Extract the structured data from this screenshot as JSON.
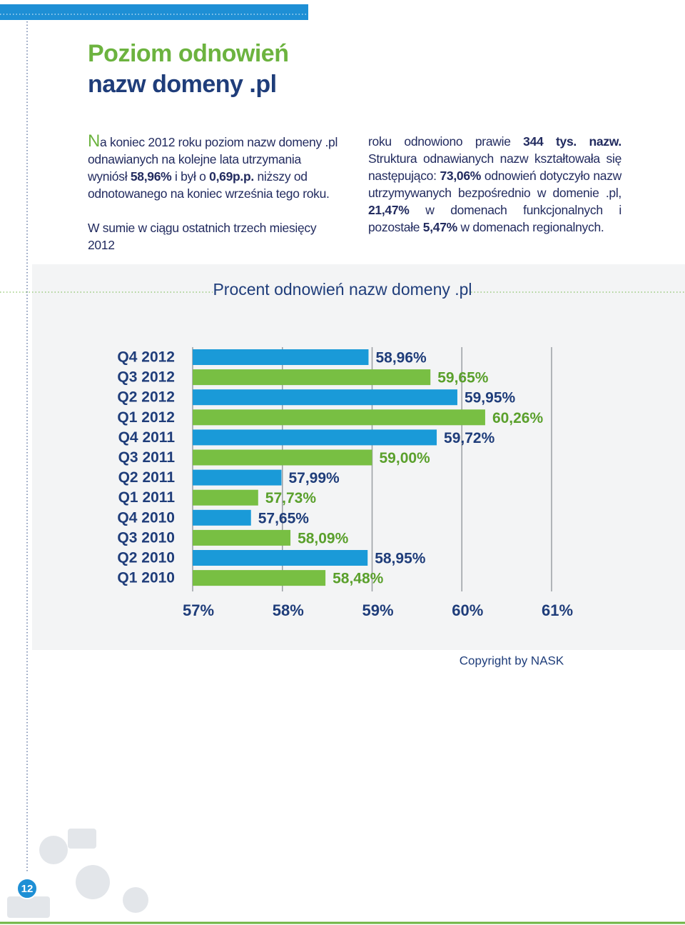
{
  "header": {
    "title_line1": "Poziom odnowień",
    "title_line2": "nazw domeny .pl"
  },
  "left_column": [
    {
      "segments": [
        {
          "text": "N",
          "initial": true
        },
        {
          "text": "a koniec 2012 roku poziom nazw domeny .pl odnawianych na kolejne lata utrzymania wyniósł "
        },
        {
          "text": "58,96%",
          "bold": true
        },
        {
          "text": " i był o "
        },
        {
          "text": "0,69p.p.",
          "bold": true
        },
        {
          "text": " niższy od odnotowanego na koniec września tego roku."
        }
      ]
    },
    {
      "segments": [
        {
          "text": "W sumie w ciągu ostatnich trzech miesięcy 2012"
        }
      ]
    }
  ],
  "right_column": [
    {
      "segments": [
        {
          "text": "roku odnowiono prawie "
        },
        {
          "text": "344 tys. nazw.",
          "bold": true
        },
        {
          "text": " Struktura odnawianych nazw kształtowała się następująco: "
        },
        {
          "text": "73,06%",
          "bold": true
        },
        {
          "text": " odnowień dotyczyło nazw utrzymywanych bezpośrednio w domenie .pl, "
        },
        {
          "text": "21,47%",
          "bold": true
        },
        {
          "text": " w domenach funkcjonalnych i pozostałe "
        },
        {
          "text": "5,47%",
          "bold": true
        },
        {
          "text": " w domenach regionalnych."
        }
      ]
    }
  ],
  "chart_data": {
    "type": "bar",
    "orientation": "horizontal",
    "title": "Procent odnowień nazw domeny .pl",
    "categories": [
      "Q4 2012",
      "Q3 2012",
      "Q2 2012",
      "Q1 2012",
      "Q4 2011",
      "Q3 2011",
      "Q2 2011",
      "Q1 2011",
      "Q4 2010",
      "Q3 2010",
      "Q2 2010",
      "Q1 2010"
    ],
    "values": [
      58.96,
      59.65,
      59.95,
      60.26,
      59.72,
      59.0,
      57.99,
      57.73,
      57.65,
      58.09,
      58.95,
      58.48
    ],
    "value_labels": [
      "58,96%",
      "59,65%",
      "59,95%",
      "60,26%",
      "59,72%",
      "59,00%",
      "57,99%",
      "57,73%",
      "57,65%",
      "58,09%",
      "58,95%",
      "58,48%"
    ],
    "colors": [
      "#1a9ad8",
      "#78bf43"
    ],
    "xlim": [
      57,
      61
    ],
    "xticks": [
      {
        "value": 57,
        "label": "57%"
      },
      {
        "value": 58,
        "label": "58%"
      },
      {
        "value": 59,
        "label": "59%"
      },
      {
        "value": 60,
        "label": "60%"
      },
      {
        "value": 61,
        "label": "61%"
      }
    ],
    "grid": true
  },
  "copyright": "Copyright by NASK",
  "page_number": "12"
}
